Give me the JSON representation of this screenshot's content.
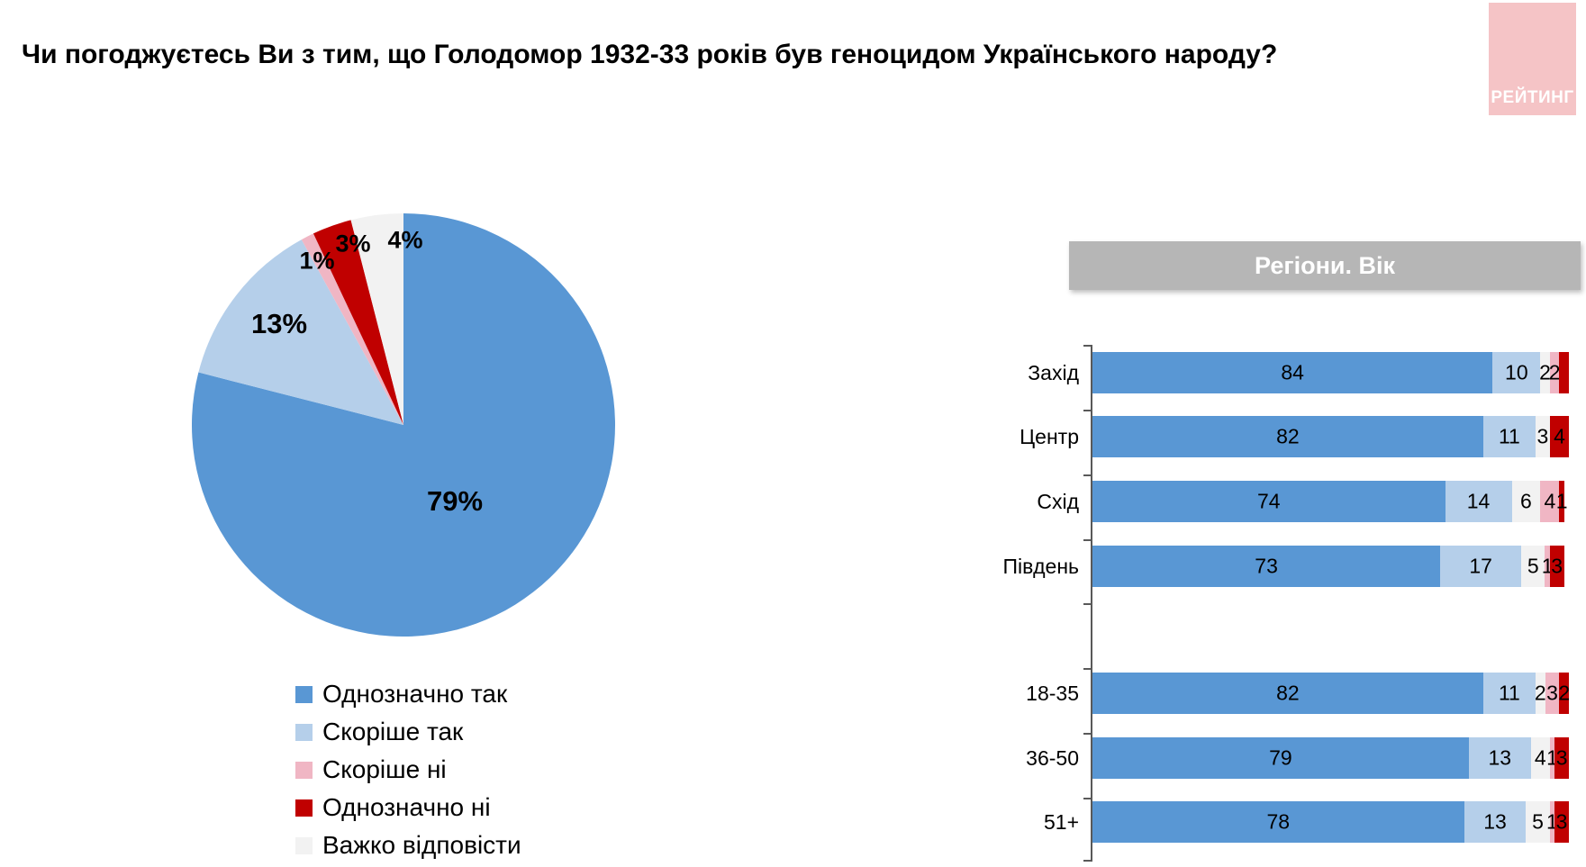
{
  "title": "Чи погоджуєтесь Ви з тим, що Голодомор 1932-33 років був геноцидом Українського народу?",
  "logo": {
    "text": "РЕЙТИНГ",
    "bg_color": "#F5C4C6",
    "text_color": "#FFFFFF"
  },
  "colors": {
    "definitely_yes": "#5997D4",
    "rather_yes": "#B5CFEA",
    "rather_no": "#F0B6C4",
    "definitely_no": "#C00000",
    "hard_to_say": "#F2F2F2",
    "header_bg": "#B6B6B6",
    "axis": "#595959",
    "background": "#FFFFFF"
  },
  "legend": {
    "items": [
      {
        "label": "Однозначно так",
        "color": "definitely_yes"
      },
      {
        "label": "Скоріше так",
        "color": "rather_yes"
      },
      {
        "label": "Скоріше ні",
        "color": "rather_no"
      },
      {
        "label": "Однозначно ні",
        "color": "definitely_no"
      },
      {
        "label": "Важко відповісти",
        "color": "hard_to_say"
      }
    ]
  },
  "right_panel": {
    "header": "Регіони. Вік"
  },
  "chart_data": [
    {
      "type": "pie",
      "title": "",
      "start_angle_deg": 0,
      "direction": "clockwise",
      "slices": [
        {
          "label": "Однозначно так",
          "value": 79,
          "display": "79%",
          "color": "definitely_yes"
        },
        {
          "label": "Скоріше так",
          "value": 13,
          "display": "13%",
          "color": "rather_yes"
        },
        {
          "label": "Скоріше ні",
          "value": 1,
          "display": "1%",
          "color": "rather_no"
        },
        {
          "label": "Однозначно ні",
          "value": 3,
          "display": "3%",
          "color": "definitely_no"
        },
        {
          "label": "Важко відповісти",
          "value": 4,
          "display": "4%",
          "color": "hard_to_say"
        }
      ]
    },
    {
      "type": "bar",
      "orientation": "horizontal",
      "stacked": true,
      "title": "Регіони. Вік",
      "x_max": 100,
      "series_order": [
        "Однозначно так",
        "Скоріше так",
        "Важко відповісти",
        "Скоріше ні",
        "Однозначно ні"
      ],
      "series_colors": [
        "definitely_yes",
        "rather_yes",
        "hard_to_say",
        "rather_no",
        "definitely_no"
      ],
      "groups": [
        {
          "name": "Регіони",
          "rows": [
            {
              "category": "Захід",
              "values": [
                84,
                10,
                2,
                2,
                2
              ],
              "labels": [
                "84",
                "10",
                "2",
                "2",
                ""
              ]
            },
            {
              "category": "Центр",
              "values": [
                82,
                11,
                3,
                0,
                4
              ],
              "labels": [
                "82",
                "11",
                "3",
                "",
                "4"
              ]
            },
            {
              "category": "Схід",
              "values": [
                74,
                14,
                6,
                4,
                1
              ],
              "labels": [
                "74",
                "14",
                "6",
                "4",
                "1"
              ]
            },
            {
              "category": "Південь",
              "values": [
                73,
                17,
                5,
                1,
                3
              ],
              "labels": [
                "73",
                "17",
                "5",
                "1",
                "3"
              ]
            }
          ]
        },
        {
          "name": "Вік",
          "rows": [
            {
              "category": "18-35",
              "values": [
                82,
                11,
                2,
                3,
                2
              ],
              "labels": [
                "82",
                "11",
                "2",
                "3",
                "2"
              ]
            },
            {
              "category": "36-50",
              "values": [
                79,
                13,
                4,
                1,
                3
              ],
              "labels": [
                "79",
                "13",
                "4",
                "1",
                "3"
              ]
            },
            {
              "category": "51+",
              "values": [
                78,
                13,
                5,
                1,
                3
              ],
              "labels": [
                "78",
                "13",
                "5",
                "1",
                "3"
              ]
            }
          ]
        }
      ]
    }
  ]
}
